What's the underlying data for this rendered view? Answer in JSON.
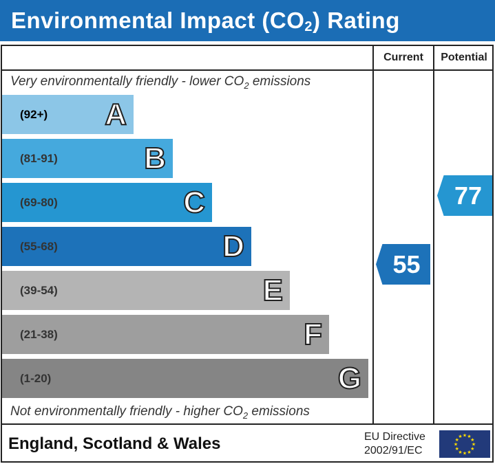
{
  "title": {
    "main": "Environmental Impact (CO",
    "sub": "2",
    "end": ") Rating"
  },
  "columns": {
    "current": "Current",
    "potential": "Potential"
  },
  "top_note": {
    "a": "Very environmentally friendly - lower CO",
    "sub": "2",
    "b": " emissions"
  },
  "bottom_note": {
    "a": "Not environmentally friendly - higher CO",
    "sub": "2",
    "b": " emissions"
  },
  "footer": {
    "region": "England, Scotland & Wales",
    "directive_line1": "EU Directive",
    "directive_line2": "2002/91/EC",
    "flag_icon": "eu-flag-icon"
  },
  "chart_data": {
    "type": "bar",
    "bands": [
      {
        "letter": "A",
        "range": "(92+)",
        "color": "#8cc6e7"
      },
      {
        "letter": "B",
        "range": "(81-91)",
        "color": "#45a9dd"
      },
      {
        "letter": "C",
        "range": "(69-80)",
        "color": "#2596d1"
      },
      {
        "letter": "D",
        "range": "(55-68)",
        "color": "#1d72b9"
      },
      {
        "letter": "E",
        "range": "(39-54)",
        "color": "#b4b4b4"
      },
      {
        "letter": "F",
        "range": "(21-38)",
        "color": "#9e9e9e"
      },
      {
        "letter": "G",
        "range": "(1-20)",
        "color": "#858585"
      }
    ],
    "current": {
      "value": "55",
      "band": "D",
      "color": "#1d72b9"
    },
    "potential": {
      "value": "77",
      "band": "C",
      "color": "#2596d1"
    }
  }
}
